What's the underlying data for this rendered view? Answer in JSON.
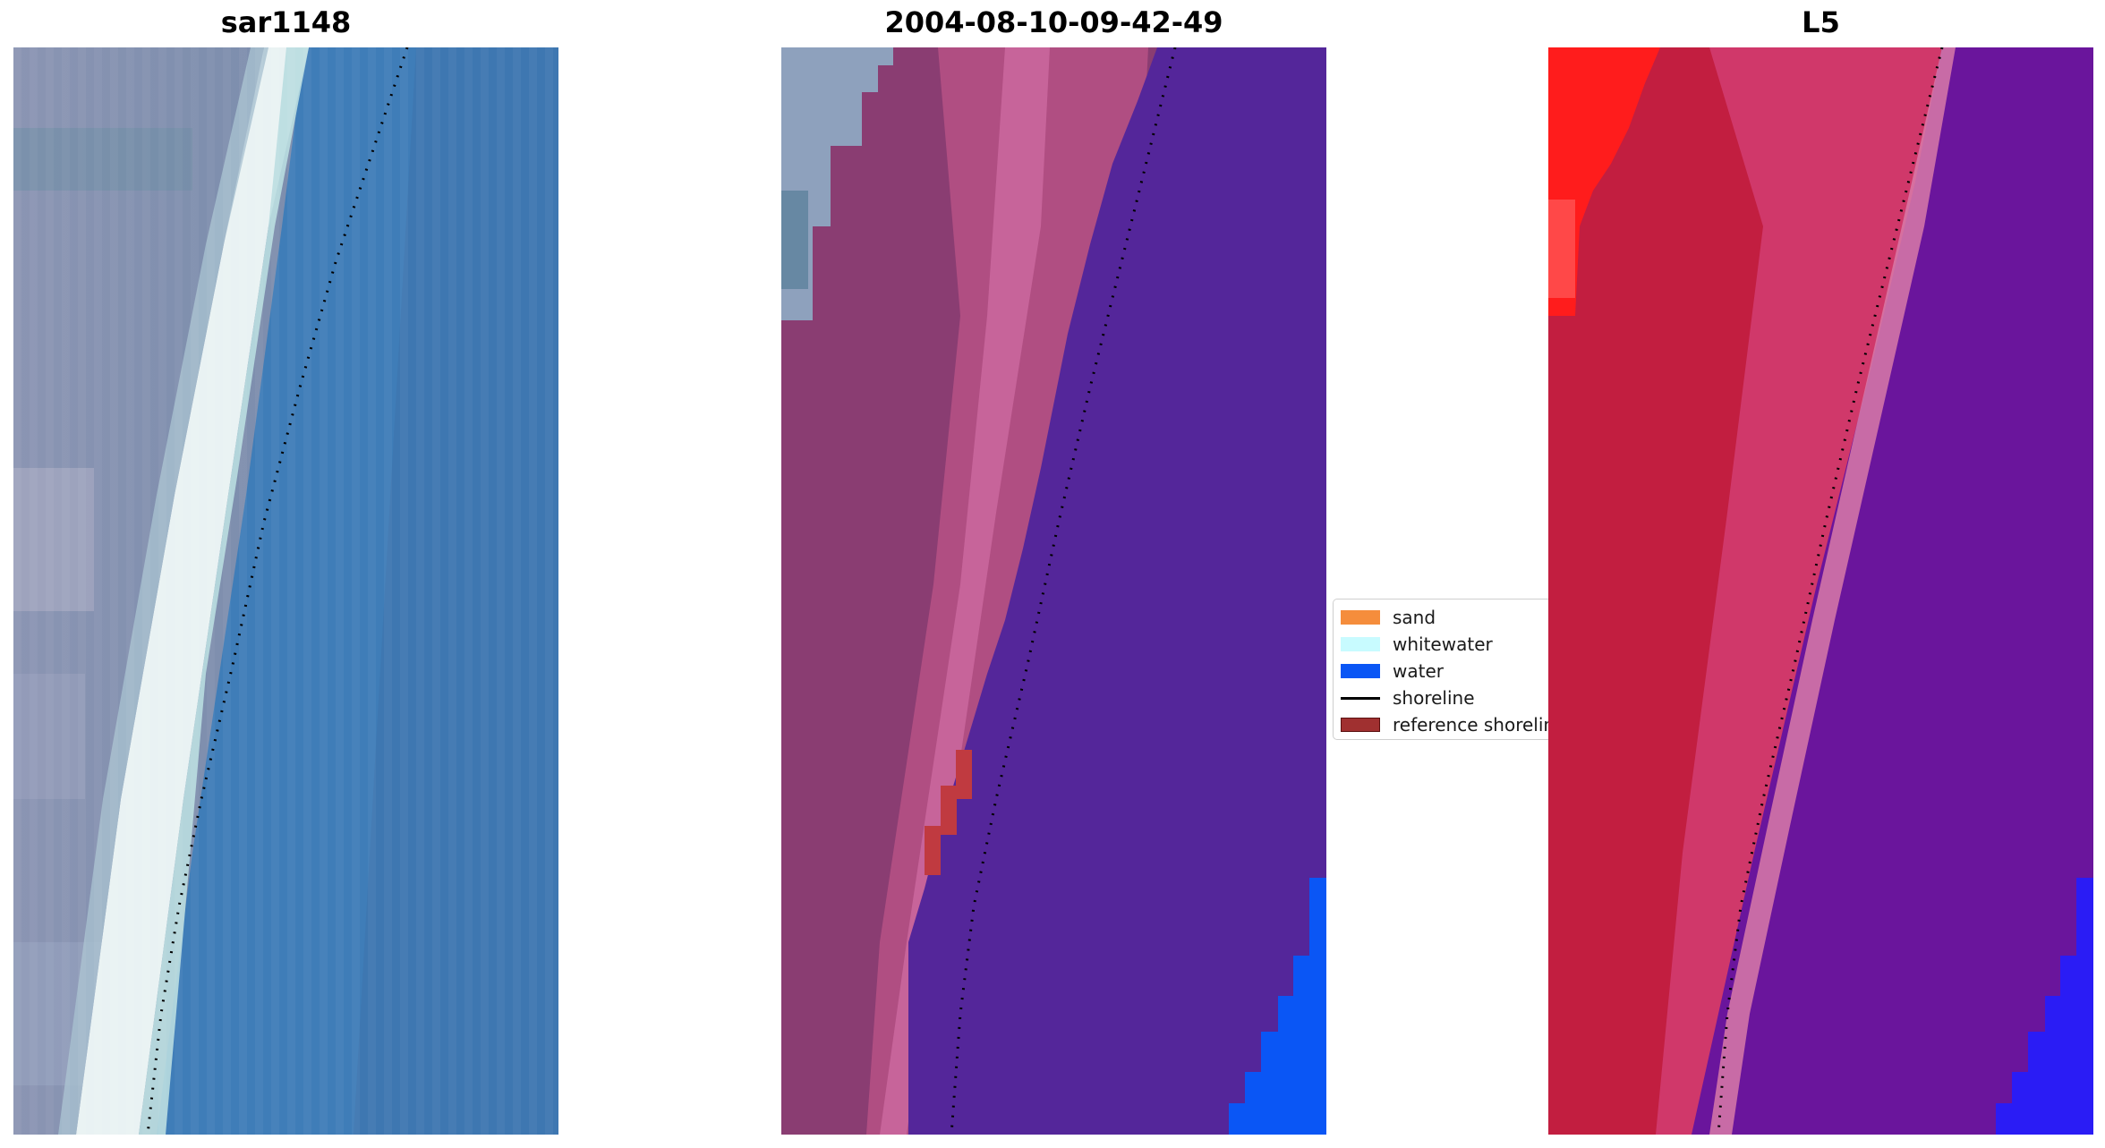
{
  "panels": [
    {
      "title": "sar1148"
    },
    {
      "title": "2004-08-10-09-42-49"
    },
    {
      "title": "L5"
    }
  ],
  "legend": {
    "items": [
      {
        "label": "sand",
        "color": "#f58d3c"
      },
      {
        "label": "whitewater",
        "color": "#c8fbff"
      },
      {
        "label": "water",
        "color": "#0a56f5"
      },
      {
        "label": "shoreline",
        "color": "#000000"
      },
      {
        "label": "reference shoreline",
        "color": "#a03030"
      }
    ]
  },
  "colors": {
    "ocean_rgb": "#3f7fb5",
    "whitewater_rgb": "#f2f8f8",
    "land_rgb": "#8696b4",
    "classified_water": "#54269a",
    "classified_land": "#8c3a72",
    "classified_sand_highlight": "#c9588a",
    "open_water": "#0a56f5",
    "index_land": "#c4203e",
    "index_red": "#ff1a1a",
    "index_water": "#6a149a",
    "index_blue": "#2a1cf5"
  }
}
